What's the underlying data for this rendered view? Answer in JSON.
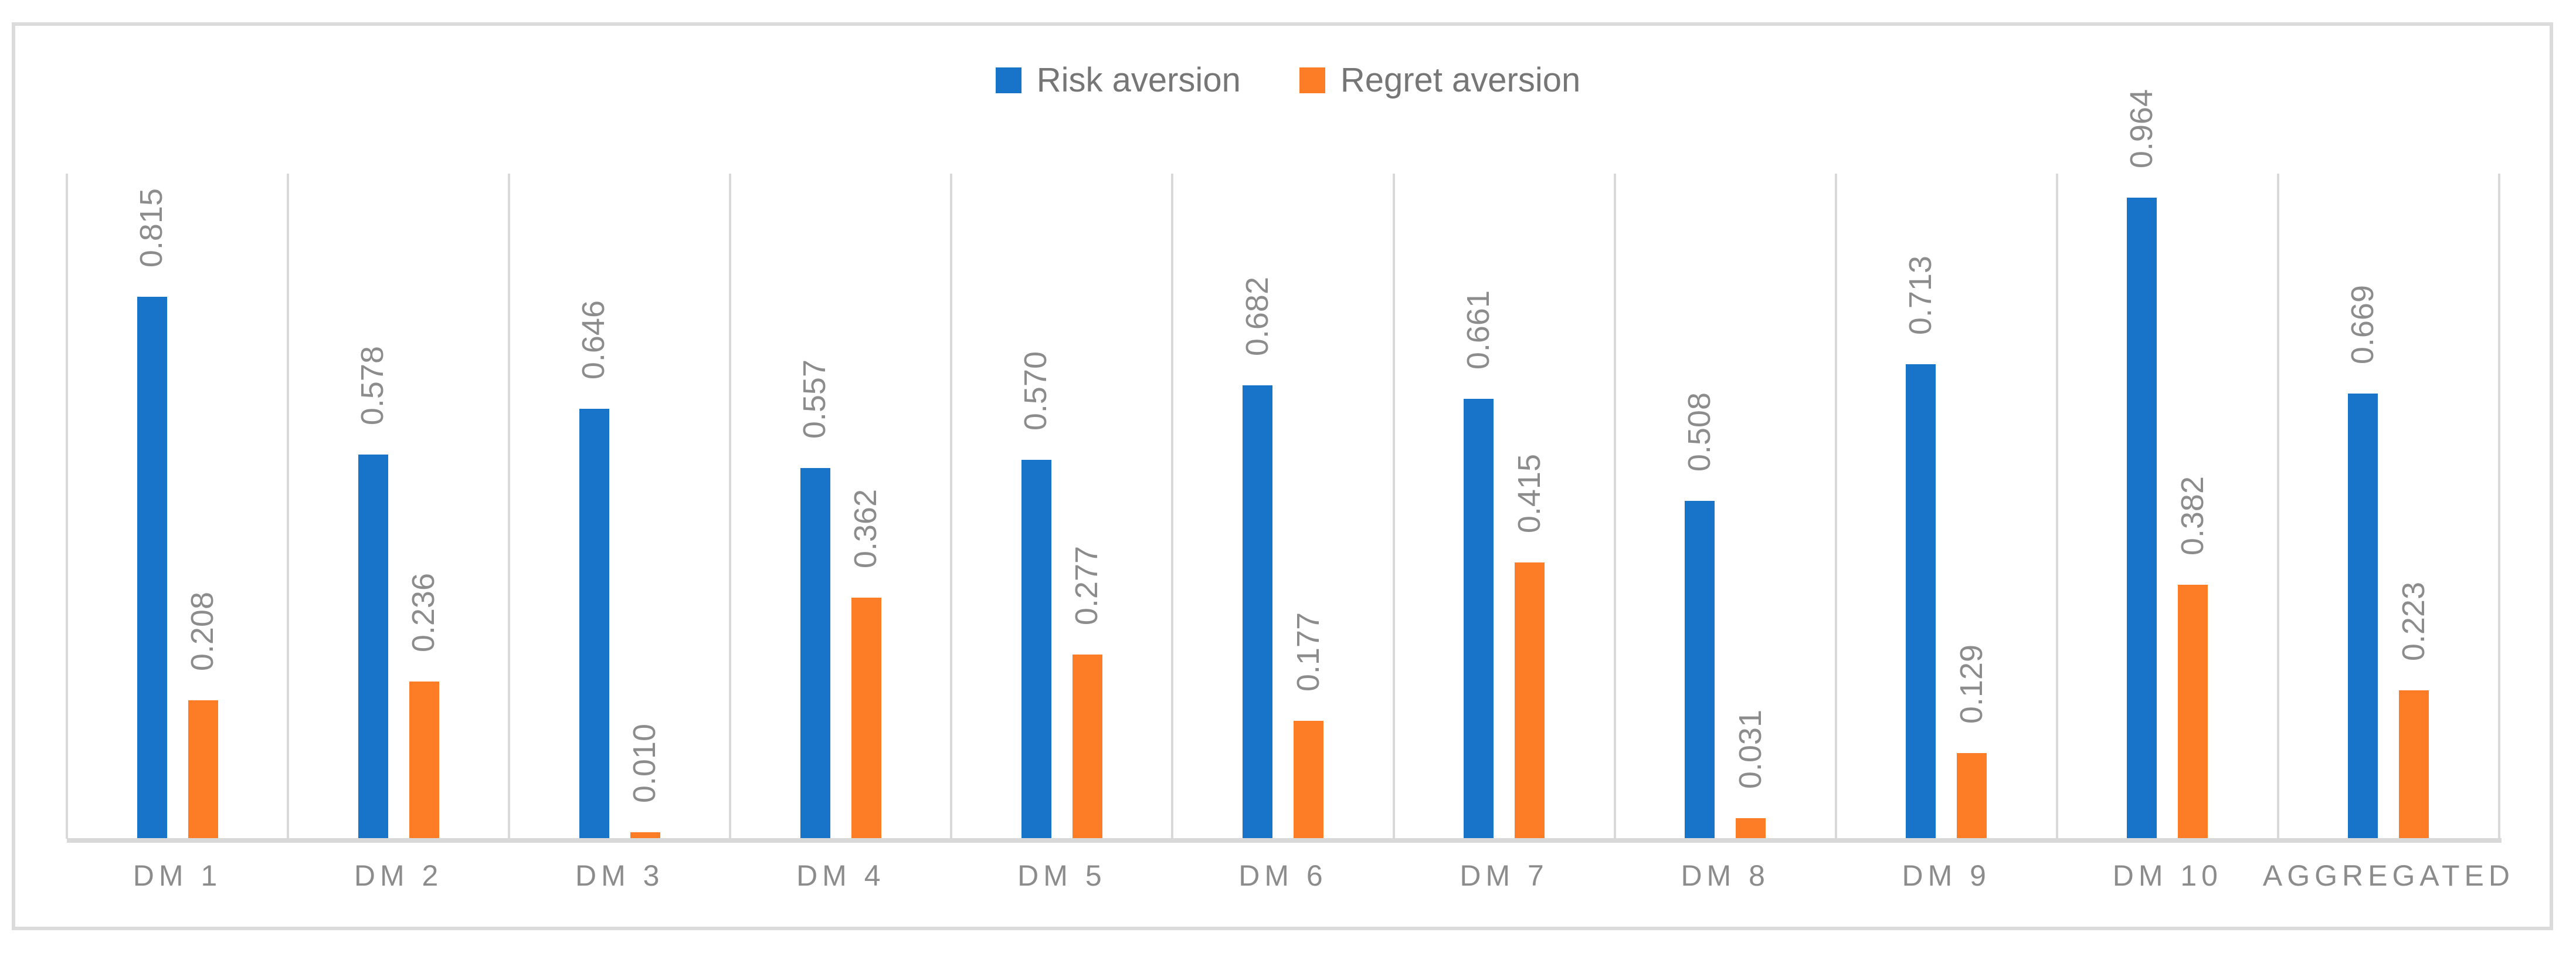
{
  "chart_data": {
    "type": "bar",
    "title": "",
    "categories": [
      "DM 1",
      "DM 2",
      "DM 3",
      "DM 4",
      "DM 5",
      "DM 6",
      "DM 7",
      "DM 8",
      "DM 9",
      "DM 10",
      "AGGREGATED"
    ],
    "series": [
      {
        "name": "Risk aversion",
        "color": "#1874C8",
        "values": [
          0.815,
          0.578,
          0.646,
          0.557,
          0.57,
          0.682,
          0.661,
          0.508,
          0.713,
          0.964,
          0.669
        ]
      },
      {
        "name": "Regret aversion",
        "color": "#FC7D26",
        "values": [
          0.208,
          0.236,
          0.01,
          0.362,
          0.277,
          0.177,
          0.415,
          0.031,
          0.129,
          0.382,
          0.223
        ]
      }
    ],
    "ylim": [
      0,
      1
    ],
    "value_label_decimals": 3,
    "value_label_rotation": "vertical-bottom-to-top",
    "legend_position": "top-center",
    "gridlines": "vertical-category-boundaries",
    "colors": {
      "gridline": "#D9D9D9",
      "axis_line": "#D9D9D9",
      "frame_border": "#DBDBDB",
      "value_label_text": "#8C8C8C",
      "category_label_text": "#8C8C8C",
      "legend_text": "#767676",
      "background": "#FFFFFF"
    }
  }
}
